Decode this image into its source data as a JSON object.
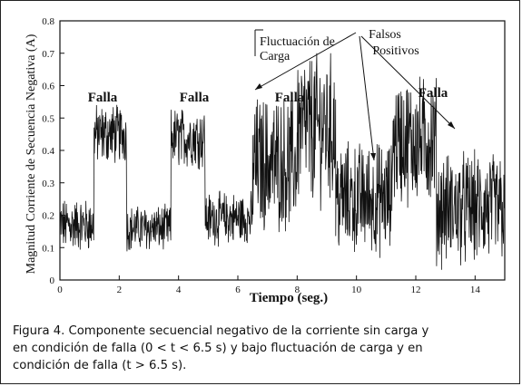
{
  "chart_data": {
    "type": "line",
    "title": "",
    "xlabel": "Tiempo (seg.)",
    "ylabel": "Magnitud Corriente de Secuencia Negativa (A)",
    "xlim": [
      0,
      15
    ],
    "ylim": [
      0,
      0.8
    ],
    "x_ticks": [
      "0",
      "2",
      "4",
      "6",
      "8",
      "10",
      "12",
      "14"
    ],
    "y_ticks": [
      "0",
      "0.1",
      "0.2",
      "0.3",
      "0.4",
      "0.5",
      "0.6",
      "0.7",
      "0.8"
    ],
    "grid": false,
    "line_color": "#111111",
    "segments": [
      {
        "x_start": 0.0,
        "x_end": 1.15,
        "mean": 0.17,
        "spread": 0.07
      },
      {
        "x_start": 1.15,
        "x_end": 2.25,
        "mean": 0.45,
        "spread": 0.08
      },
      {
        "x_start": 2.25,
        "x_end": 3.75,
        "mean": 0.16,
        "spread": 0.06
      },
      {
        "x_start": 3.75,
        "x_end": 4.9,
        "mean": 0.44,
        "spread": 0.08
      },
      {
        "x_start": 4.9,
        "x_end": 6.5,
        "mean": 0.19,
        "spread": 0.07
      },
      {
        "x_start": 6.5,
        "x_end": 8.0,
        "mean": 0.36,
        "spread": 0.18
      },
      {
        "x_start": 8.0,
        "x_end": 9.3,
        "mean": 0.47,
        "spread": 0.2
      },
      {
        "x_start": 9.3,
        "x_end": 11.2,
        "mean": 0.25,
        "spread": 0.15
      },
      {
        "x_start": 11.2,
        "x_end": 12.7,
        "mean": 0.43,
        "spread": 0.17
      },
      {
        "x_start": 12.7,
        "x_end": 15.0,
        "mean": 0.22,
        "spread": 0.15
      }
    ],
    "annotations": {
      "falla_1": "Falla",
      "falla_2": "Falla",
      "falla_3": "Falla",
      "falla_4": "Falla",
      "fluctuacion_line1": "Fluctuación de",
      "fluctuacion_line2": "Carga",
      "falsos_line1": "Falsos",
      "falsos_line2": "Positivos"
    }
  },
  "caption": {
    "line1": "Figura 4. Componente secuencial negativo de la corriente sin carga y",
    "line2": "en condición de falla (0 < t < 6.5 s) y bajo fluctuación de carga y en",
    "line3": "condición de falla (t > 6.5 s)."
  }
}
